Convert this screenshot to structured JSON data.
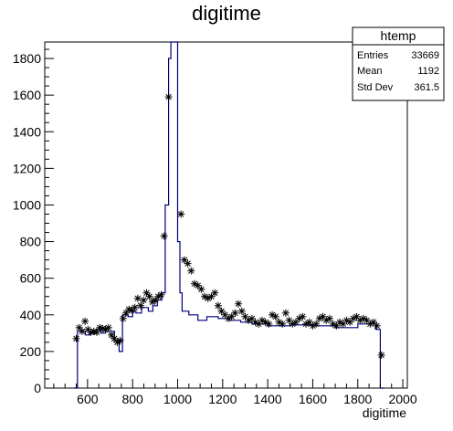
{
  "chart_data": {
    "type": "histogram",
    "title": "digitime",
    "xlabel": "digitime",
    "ylabel": "",
    "xlim": [
      410,
      2020
    ],
    "ylim": [
      0,
      1890
    ],
    "x_ticks": [
      "600",
      "800",
      "1000",
      "1200",
      "1400",
      "1600",
      "1800",
      "2000"
    ],
    "y_ticks": [
      "0",
      "200",
      "400",
      "600",
      "800",
      "1000",
      "1200",
      "1400",
      "1600",
      "1800"
    ],
    "histogram_color": "#000080",
    "marker_color": "#000000",
    "stats": {
      "name": "htemp",
      "rows": [
        {
          "label": "Entries",
          "value": "33669"
        },
        {
          "label": "Mean",
          "value": "1192"
        },
        {
          "label": "Std Dev",
          "value": "361.5"
        }
      ]
    },
    "histogram": [
      [
        540,
        555,
        0
      ],
      [
        555,
        590,
        310
      ],
      [
        590,
        610,
        290
      ],
      [
        610,
        640,
        300
      ],
      [
        640,
        660,
        320
      ],
      [
        660,
        680,
        300
      ],
      [
        680,
        720,
        310
      ],
      [
        720,
        740,
        260
      ],
      [
        740,
        755,
        200
      ],
      [
        755,
        780,
        400
      ],
      [
        780,
        800,
        390
      ],
      [
        800,
        815,
        420
      ],
      [
        815,
        840,
        410
      ],
      [
        840,
        870,
        440
      ],
      [
        870,
        890,
        420
      ],
      [
        890,
        910,
        450
      ],
      [
        910,
        930,
        480
      ],
      [
        930,
        945,
        520
      ],
      [
        945,
        960,
        1000
      ],
      [
        960,
        970,
        1800
      ],
      [
        970,
        980,
        1890
      ],
      [
        980,
        1000,
        1890
      ],
      [
        1000,
        1010,
        800
      ],
      [
        1010,
        1020,
        520
      ],
      [
        1020,
        1050,
        420
      ],
      [
        1050,
        1090,
        400
      ],
      [
        1090,
        1130,
        370
      ],
      [
        1130,
        1180,
        390
      ],
      [
        1180,
        1230,
        380
      ],
      [
        1230,
        1280,
        370
      ],
      [
        1280,
        1330,
        360
      ],
      [
        1330,
        1400,
        350
      ],
      [
        1400,
        1500,
        340
      ],
      [
        1500,
        1600,
        345
      ],
      [
        1600,
        1700,
        340
      ],
      [
        1700,
        1800,
        330
      ],
      [
        1800,
        1880,
        350
      ],
      [
        1880,
        1900,
        320
      ],
      [
        1900,
        1915,
        0
      ]
    ],
    "markers": [
      [
        550,
        270
      ],
      [
        563,
        330
      ],
      [
        576,
        310
      ],
      [
        589,
        365
      ],
      [
        602,
        320
      ],
      [
        615,
        305
      ],
      [
        628,
        310
      ],
      [
        641,
        305
      ],
      [
        654,
        330
      ],
      [
        667,
        325
      ],
      [
        680,
        320
      ],
      [
        693,
        330
      ],
      [
        706,
        290
      ],
      [
        719,
        270
      ],
      [
        732,
        250
      ],
      [
        745,
        260
      ],
      [
        758,
        380
      ],
      [
        771,
        410
      ],
      [
        784,
        430
      ],
      [
        797,
        425
      ],
      [
        810,
        440
      ],
      [
        823,
        490
      ],
      [
        836,
        450
      ],
      [
        849,
        480
      ],
      [
        862,
        520
      ],
      [
        875,
        500
      ],
      [
        888,
        470
      ],
      [
        901,
        480
      ],
      [
        914,
        500
      ],
      [
        927,
        510
      ],
      [
        940,
        830
      ],
      [
        960,
        1590
      ],
      [
        1015,
        950
      ],
      [
        1030,
        700
      ],
      [
        1045,
        680
      ],
      [
        1060,
        640
      ],
      [
        1075,
        570
      ],
      [
        1090,
        560
      ],
      [
        1105,
        540
      ],
      [
        1120,
        500
      ],
      [
        1135,
        490
      ],
      [
        1150,
        500
      ],
      [
        1165,
        520
      ],
      [
        1180,
        450
      ],
      [
        1195,
        420
      ],
      [
        1210,
        400
      ],
      [
        1225,
        380
      ],
      [
        1240,
        390
      ],
      [
        1255,
        410
      ],
      [
        1270,
        460
      ],
      [
        1285,
        420
      ],
      [
        1300,
        390
      ],
      [
        1315,
        370
      ],
      [
        1330,
        380
      ],
      [
        1345,
        360
      ],
      [
        1360,
        350
      ],
      [
        1375,
        370
      ],
      [
        1390,
        360
      ],
      [
        1405,
        350
      ],
      [
        1420,
        400
      ],
      [
        1435,
        390
      ],
      [
        1450,
        360
      ],
      [
        1465,
        350
      ],
      [
        1480,
        410
      ],
      [
        1495,
        370
      ],
      [
        1510,
        350
      ],
      [
        1525,
        360
      ],
      [
        1540,
        380
      ],
      [
        1555,
        390
      ],
      [
        1570,
        350
      ],
      [
        1585,
        360
      ],
      [
        1600,
        340
      ],
      [
        1615,
        350
      ],
      [
        1630,
        380
      ],
      [
        1645,
        390
      ],
      [
        1660,
        370
      ],
      [
        1675,
        380
      ],
      [
        1690,
        350
      ],
      [
        1705,
        340
      ],
      [
        1720,
        360
      ],
      [
        1735,
        350
      ],
      [
        1750,
        370
      ],
      [
        1765,
        360
      ],
      [
        1780,
        380
      ],
      [
        1795,
        390
      ],
      [
        1810,
        370
      ],
      [
        1825,
        380
      ],
      [
        1840,
        370
      ],
      [
        1855,
        350
      ],
      [
        1870,
        360
      ],
      [
        1885,
        340
      ],
      [
        1905,
        180
      ]
    ]
  }
}
